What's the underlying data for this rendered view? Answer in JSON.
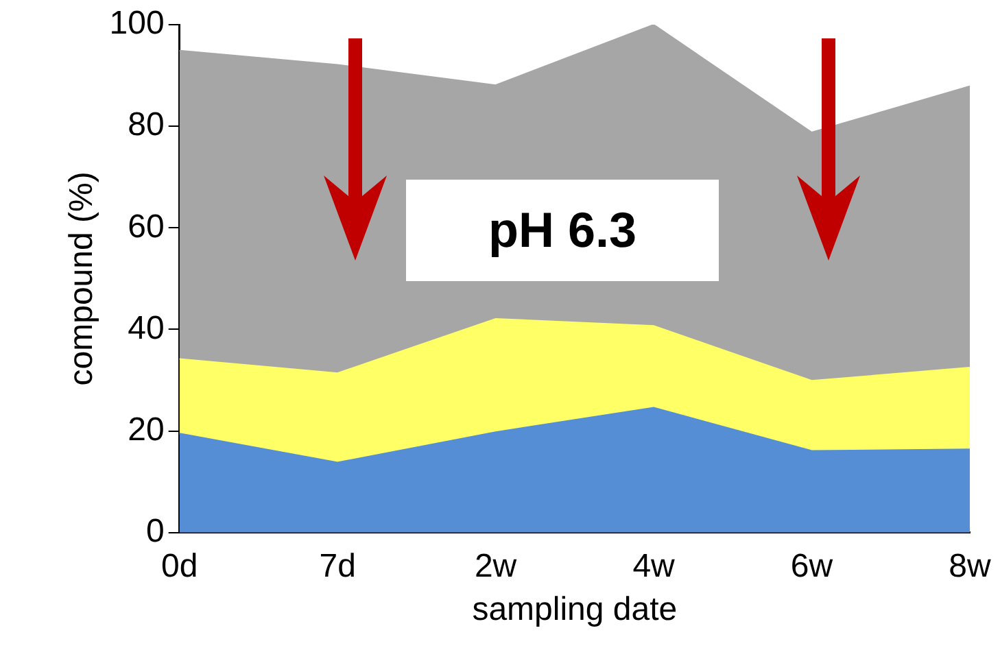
{
  "chart_data": {
    "type": "area",
    "stacked": true,
    "xlabel": "sampling date",
    "ylabel": "compound (%)",
    "categories": [
      "0d",
      "7d",
      "2w",
      "4w",
      "6w",
      "8w"
    ],
    "series": [
      {
        "color": "#558ed5",
        "values": [
          19.5,
          13.8,
          19.8,
          24.6,
          16.1,
          16.4
        ]
      },
      {
        "color": "#ffff66",
        "values": [
          14.7,
          17.6,
          22.3,
          16.1,
          13.8,
          16.1
        ]
      },
      {
        "color": "#a6a6a6",
        "values": [
          60.7,
          60.7,
          46.0,
          59.3,
          48.9,
          55.4
        ]
      }
    ],
    "ylim": [
      0,
      100
    ],
    "yticks": [
      0,
      20,
      40,
      60,
      80,
      100
    ],
    "grid": false,
    "legend": false,
    "annotations": [
      "pH 6.3"
    ]
  }
}
